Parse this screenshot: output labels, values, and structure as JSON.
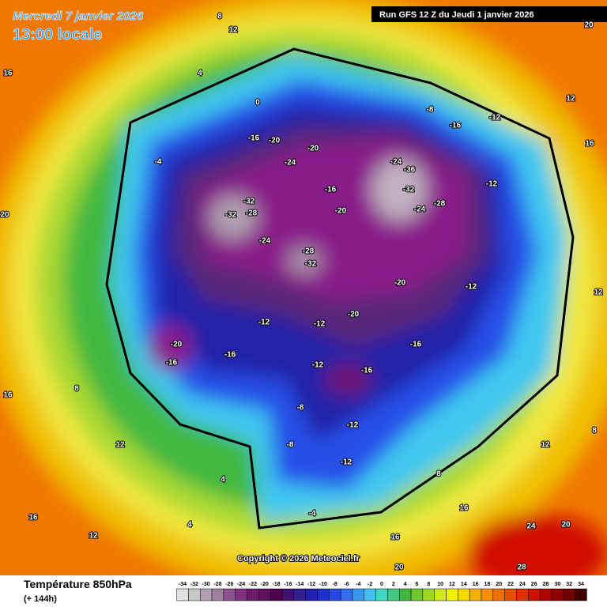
{
  "header": {
    "date": "Mercredi 7 janvier 2026",
    "time": "13:00 locale",
    "run": "Run GFS 12 Z du Jeudi 1 janvier 2026"
  },
  "copyright": "Copyright © 2026 Meteociel.fr",
  "legend": {
    "title": "Température 850hPa",
    "subtitle": "(+ 144h)",
    "ticks": [
      -34,
      -32,
      -30,
      -28,
      -26,
      -24,
      -22,
      -20,
      -18,
      -16,
      -14,
      -12,
      -10,
      -8,
      -6,
      -4,
      -2,
      0,
      2,
      4,
      6,
      8,
      10,
      12,
      14,
      16,
      18,
      20,
      22,
      24,
      26,
      28,
      30,
      32,
      34
    ],
    "colors": [
      "#e0e0e0",
      "#c8c8c8",
      "#b0a0b0",
      "#a080a0",
      "#905090",
      "#803080",
      "#701870",
      "#601060",
      "#500050",
      "#401070",
      "#302090",
      "#2020b0",
      "#2030d0",
      "#2848e8",
      "#3070f0",
      "#3898f0",
      "#40c0f0",
      "#40d8c0",
      "#40c880",
      "#40b840",
      "#70c830",
      "#a0d820",
      "#d0e820",
      "#f0f000",
      "#f8d800",
      "#f8b000",
      "#f89000",
      "#f07000",
      "#e85000",
      "#e03000",
      "#d01000",
      "#b00000",
      "#900000",
      "#700000",
      "#400000"
    ]
  },
  "contour_labels": [
    "-32",
    "-28",
    "-32",
    "-24",
    "-28",
    "-32",
    "-20",
    "-16",
    "-24",
    "-36",
    "-32",
    "-24",
    "-28",
    "-20",
    "-20",
    "-16",
    "-16",
    "-12",
    "-12",
    "-8",
    "-12",
    "-12",
    "-8",
    "-4",
    "-12",
    "-16",
    "-20",
    "-16",
    "-12",
    "-12",
    "-16",
    "-12",
    "-8",
    "-20",
    "-24",
    "-20",
    "-16",
    "-4",
    "0",
    "4",
    "8",
    "12",
    "16",
    "12",
    "16",
    "20",
    "20",
    "24",
    "28",
    "12",
    "8",
    "4",
    "4",
    "16",
    "12",
    "16",
    "20",
    "16",
    "8",
    "12",
    "8",
    "16",
    "20",
    "12"
  ]
}
